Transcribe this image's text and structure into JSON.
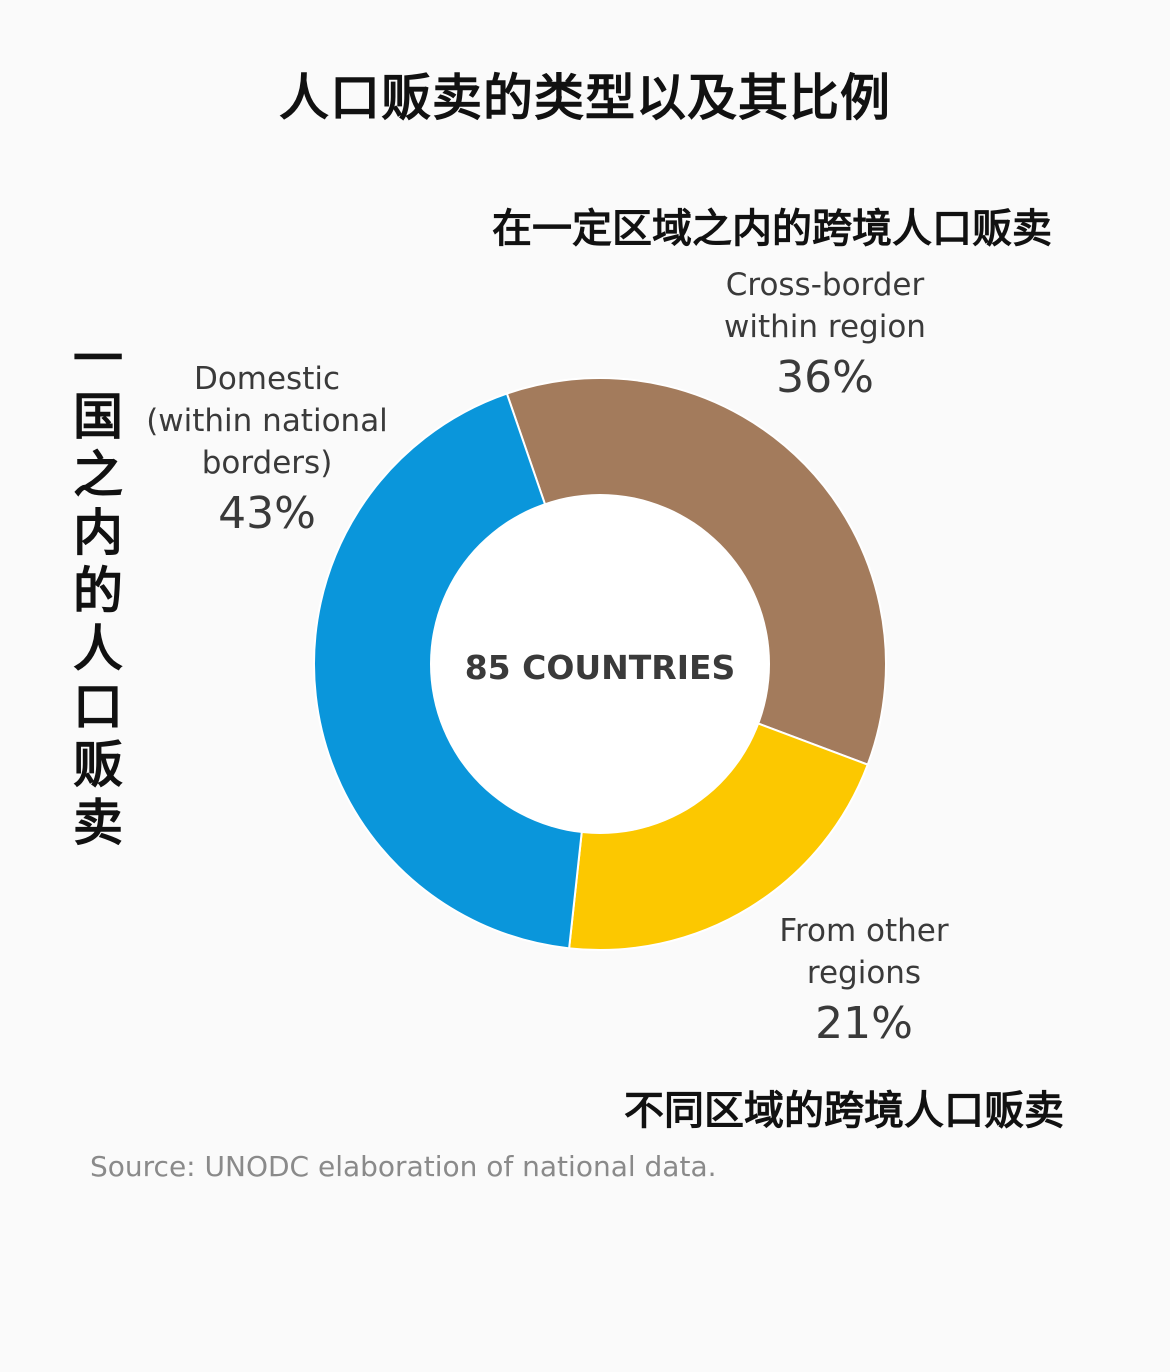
{
  "title": "人口贩卖的类型以及其比例",
  "annotations": {
    "cross_border": "在一定区域之内的跨境人口贩卖",
    "other_regions": "不同区域的跨境人口贩卖",
    "domestic": "一国之内的人口贩卖"
  },
  "source": "Source: UNODC elaboration of national data.",
  "chart_data": {
    "type": "pie",
    "center_label": "85 COUNTRIES",
    "slices": [
      {
        "name": "Cross-border\nwithin region",
        "value": 36,
        "label": "36%",
        "color": "#a37b5c"
      },
      {
        "name": "From other\nregions",
        "value": 21,
        "label": "21%",
        "color": "#fcc800"
      },
      {
        "name": "Domestic\n(within national\nborders)",
        "value": 43,
        "label": "43%",
        "color": "#0a96db"
      }
    ]
  }
}
